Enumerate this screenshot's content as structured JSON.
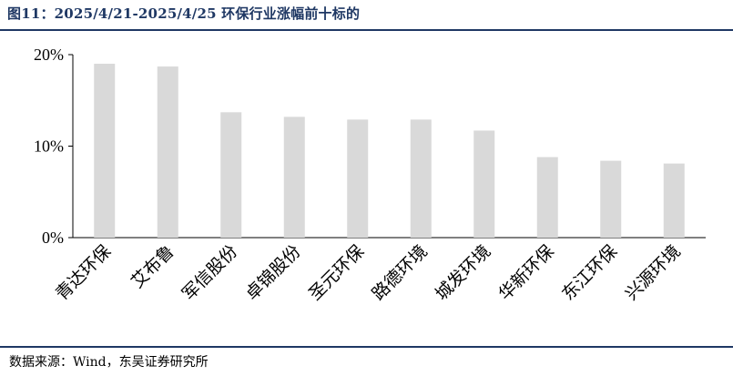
{
  "title": "图11：2025/4/21-2025/4/25 环保行业涨幅前十标的",
  "source": "数据来源：Wind，东吴证券研究所",
  "chart_data": {
    "type": "bar",
    "categories": [
      "青达环保",
      "艾布鲁",
      "军信股份",
      "卓锦股份",
      "圣元环保",
      "路德环境",
      "城发环境",
      "华新环保",
      "东江环保",
      "兴源环境"
    ],
    "values": [
      19.0,
      18.7,
      13.7,
      13.2,
      12.9,
      12.9,
      11.7,
      8.8,
      8.4,
      8.1
    ],
    "unit": "%",
    "ylim": [
      0,
      20
    ],
    "yticks": [
      "0%",
      "10%",
      "20%"
    ],
    "ytick_values": [
      0,
      10,
      20
    ],
    "bar_color": "#d9d9d9",
    "grid": false,
    "legend": "none"
  }
}
